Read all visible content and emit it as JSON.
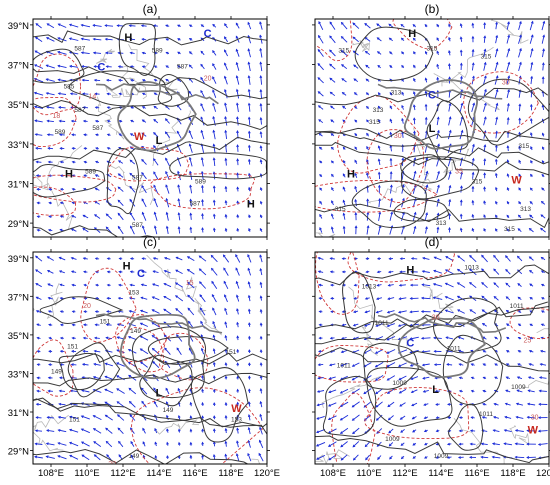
{
  "panels": [
    {
      "label": "(a)",
      "lat_ticks": [
        "39°N",
        "37°N",
        "35°N",
        "33°N",
        "31°N",
        "29°N"
      ],
      "lon_ticks": [],
      "markers": [
        {
          "text": "H",
          "lon": 112.3,
          "lat": 38.4,
          "kind": "high"
        },
        {
          "text": "C",
          "lon": 110.8,
          "lat": 36.9,
          "kind": "cold"
        },
        {
          "text": "C",
          "lon": 116.7,
          "lat": 38.6,
          "kind": "cold"
        },
        {
          "text": "W",
          "lon": 112.9,
          "lat": 33.4,
          "kind": "warm"
        },
        {
          "text": "L",
          "lon": 114.0,
          "lat": 33.2,
          "kind": "low"
        },
        {
          "text": "H",
          "lon": 109.0,
          "lat": 31.5,
          "kind": "high"
        },
        {
          "text": "H",
          "lon": 119.1,
          "lat": 30.0,
          "kind": "high"
        }
      ],
      "contour_labels": [
        {
          "text": "587",
          "lon": 109.6,
          "lat": 37.7
        },
        {
          "text": "589",
          "lon": 113.9,
          "lat": 37.6
        },
        {
          "text": "587",
          "lon": 115.3,
          "lat": 36.8
        },
        {
          "text": "585",
          "lon": 109.0,
          "lat": 35.8
        },
        {
          "text": "587",
          "lon": 109.6,
          "lat": 34.6
        },
        {
          "text": "589",
          "lon": 108.5,
          "lat": 33.5
        },
        {
          "text": "587",
          "lon": 110.6,
          "lat": 33.7
        },
        {
          "text": "589",
          "lon": 110.2,
          "lat": 31.5
        },
        {
          "text": "587",
          "lon": 112.8,
          "lat": 31.2
        },
        {
          "text": "589",
          "lon": 116.3,
          "lat": 31.0
        },
        {
          "text": "587",
          "lon": 116.0,
          "lat": 29.9
        },
        {
          "text": "587",
          "lon": 112.8,
          "lat": 28.8
        }
      ],
      "temp_labels": [
        {
          "text": "20",
          "lon": 116.7,
          "lat": 36.2
        },
        {
          "text": "14",
          "lon": 110.3,
          "lat": 35.3
        },
        {
          "text": "18",
          "lon": 108.3,
          "lat": 34.3
        }
      ]
    },
    {
      "label": "(b)",
      "lat_ticks": [],
      "lon_ticks": [],
      "markers": [
        {
          "text": "H",
          "lon": 112.4,
          "lat": 38.6,
          "kind": "high"
        },
        {
          "text": "C",
          "lon": 113.5,
          "lat": 35.5,
          "kind": "cold"
        },
        {
          "text": "L",
          "lon": 113.5,
          "lat": 33.8,
          "kind": "low"
        },
        {
          "text": "H",
          "lon": 109.0,
          "lat": 31.5,
          "kind": "high"
        },
        {
          "text": "W",
          "lon": 118.2,
          "lat": 31.2,
          "kind": "warm"
        }
      ],
      "contour_labels": [
        {
          "text": "315",
          "lon": 108.6,
          "lat": 37.6
        },
        {
          "text": "315",
          "lon": 113.5,
          "lat": 37.7
        },
        {
          "text": "315",
          "lon": 116.5,
          "lat": 37.3
        },
        {
          "text": "313",
          "lon": 111.5,
          "lat": 35.5
        },
        {
          "text": "313",
          "lon": 110.5,
          "lat": 34.6
        },
        {
          "text": "315",
          "lon": 110.3,
          "lat": 34.0
        },
        {
          "text": "315",
          "lon": 118.6,
          "lat": 32.8
        },
        {
          "text": "315",
          "lon": 116.0,
          "lat": 31.0
        },
        {
          "text": "315",
          "lon": 108.4,
          "lat": 29.6
        },
        {
          "text": "313",
          "lon": 114.0,
          "lat": 28.9
        },
        {
          "text": "315",
          "lon": 117.8,
          "lat": 28.6
        },
        {
          "text": "313",
          "lon": 118.7,
          "lat": 29.6
        }
      ],
      "temp_labels": [
        {
          "text": "30",
          "lon": 117.6,
          "lat": 36.0
        },
        {
          "text": "30",
          "lon": 111.6,
          "lat": 33.3
        },
        {
          "text": "35",
          "lon": 115.0,
          "lat": 31.5
        }
      ]
    },
    {
      "label": "(c)",
      "lat_ticks": [
        "39°N",
        "37°N",
        "35°N",
        "33°N",
        "31°N",
        "29°N"
      ],
      "lon_ticks": [
        "108°E",
        "110°E",
        "112°E",
        "114°E",
        "116°E",
        "118°E",
        "120°E"
      ],
      "markers": [
        {
          "text": "H",
          "lon": 112.2,
          "lat": 38.6,
          "kind": "high"
        },
        {
          "text": "C",
          "lon": 113.0,
          "lat": 38.2,
          "kind": "cold"
        },
        {
          "text": "L",
          "lon": 114.0,
          "lat": 32.0,
          "kind": "low"
        },
        {
          "text": "W",
          "lon": 118.3,
          "lat": 31.2,
          "kind": "warm"
        }
      ],
      "contour_labels": [
        {
          "text": "153",
          "lon": 112.6,
          "lat": 37.1
        },
        {
          "text": "151",
          "lon": 111.0,
          "lat": 35.6
        },
        {
          "text": "149",
          "lon": 112.7,
          "lat": 35.1
        },
        {
          "text": "151",
          "lon": 109.2,
          "lat": 34.3
        },
        {
          "text": "149",
          "lon": 108.3,
          "lat": 33.0
        },
        {
          "text": "151",
          "lon": 118.0,
          "lat": 34.0
        },
        {
          "text": "149",
          "lon": 114.5,
          "lat": 31.0
        },
        {
          "text": "151",
          "lon": 109.3,
          "lat": 30.5
        },
        {
          "text": "153",
          "lon": 118.3,
          "lat": 30.5
        },
        {
          "text": "149",
          "lon": 112.6,
          "lat": 28.6
        }
      ],
      "temp_labels": [
        {
          "text": "15",
          "lon": 115.7,
          "lat": 37.6
        },
        {
          "text": "20",
          "lon": 110.0,
          "lat": 36.4
        },
        {
          "text": "20",
          "lon": 111.4,
          "lat": 28.2
        }
      ]
    },
    {
      "label": "(d)",
      "lat_ticks": [],
      "lon_ticks": [
        "108°E",
        "110°E",
        "112°E",
        "114°E",
        "116°E",
        "118°E",
        "120°E"
      ],
      "markers": [
        {
          "text": "H",
          "lon": 112.3,
          "lat": 38.4,
          "kind": "high"
        },
        {
          "text": "C",
          "lon": 112.3,
          "lat": 34.6,
          "kind": "cold"
        },
        {
          "text": "L",
          "lon": 113.7,
          "lat": 32.2,
          "kind": "low"
        },
        {
          "text": "W",
          "lon": 119.1,
          "lat": 30.1,
          "kind": "warm"
        }
      ],
      "contour_labels": [
        {
          "text": "1013",
          "lon": 110.0,
          "lat": 37.4
        },
        {
          "text": "1013",
          "lon": 115.7,
          "lat": 38.4
        },
        {
          "text": "1011",
          "lon": 118.2,
          "lat": 36.4
        },
        {
          "text": "1011",
          "lon": 110.7,
          "lat": 35.5
        },
        {
          "text": "1011",
          "lon": 108.6,
          "lat": 33.3
        },
        {
          "text": "1009",
          "lon": 111.7,
          "lat": 32.4
        },
        {
          "text": "1011",
          "lon": 114.7,
          "lat": 34.2
        },
        {
          "text": "1011",
          "lon": 116.5,
          "lat": 30.8
        },
        {
          "text": "1009",
          "lon": 111.3,
          "lat": 29.5
        },
        {
          "text": "1009",
          "lon": 114.0,
          "lat": 28.6
        },
        {
          "text": "1009",
          "lon": 118.3,
          "lat": 32.2
        }
      ],
      "temp_labels": [
        {
          "text": "25",
          "lon": 118.8,
          "lat": 34.6
        },
        {
          "text": "30",
          "lon": 113.7,
          "lat": 35.8
        },
        {
          "text": "30",
          "lon": 119.2,
          "lat": 30.6
        }
      ]
    }
  ],
  "colors": {
    "frame": "#000000",
    "contour": "#3a3a3a",
    "temperature": "#d03a3a",
    "temperature_label": "#c85a5a",
    "wind": "#1a2bd8",
    "border": "#7a7a7a",
    "province": "#b8b8b8",
    "marker_high": "#111111",
    "marker_low": "#111111",
    "marker_cold": "#1d2bd0",
    "marker_warm": "#c8281e"
  }
}
